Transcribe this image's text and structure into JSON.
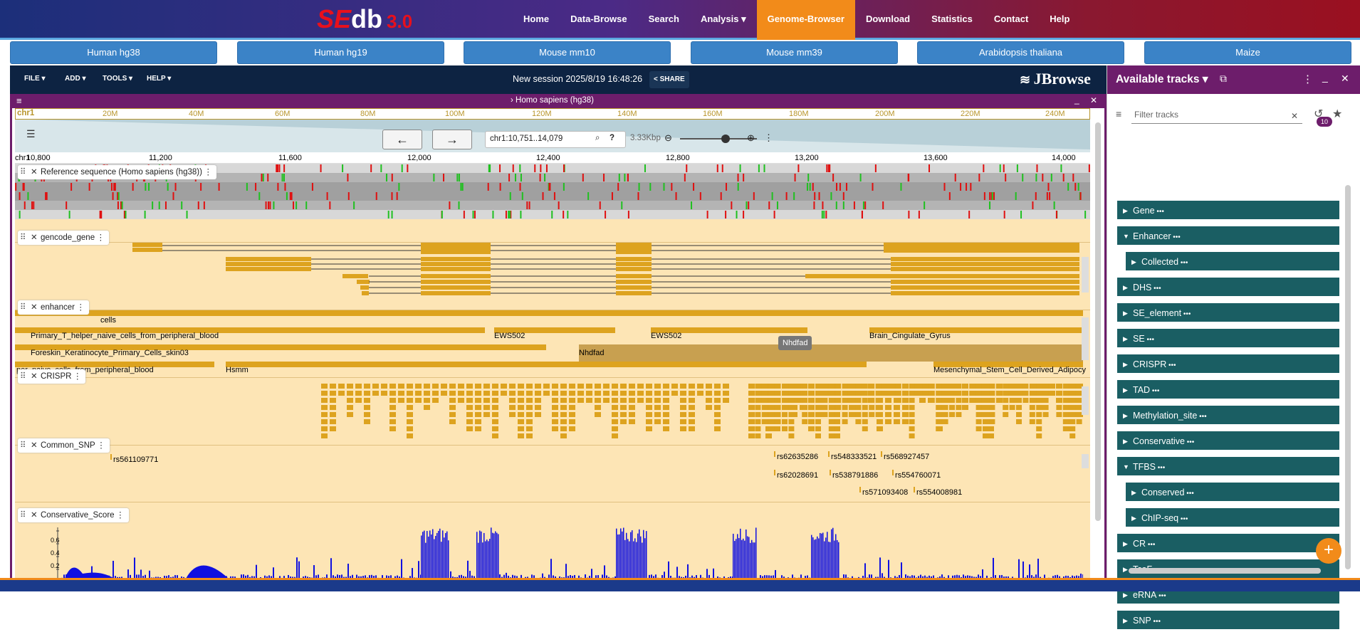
{
  "site": {
    "logo_se": "SE",
    "logo_db": "db",
    "logo_ver": "3.0",
    "menu": [
      "Home",
      "Data-Browse",
      "Search",
      "Analysis",
      "Genome-Browser",
      "Download",
      "Statistics",
      "Contact",
      "Help"
    ],
    "active_menu": "Genome-Browser",
    "genome_tabs": [
      "Human hg38",
      "Human hg19",
      "Mouse mm10",
      "Mouse mm39",
      "Arabidopsis thaliana",
      "Maize"
    ]
  },
  "jbrowse": {
    "menu": [
      "FILE",
      "ADD",
      "TOOLS",
      "HELP"
    ],
    "session_name": "New session 2025/8/19 16:48:26",
    "share_label": "SHARE",
    "logo_text": "JBrowse",
    "view_title": "Homo sapiens (hg38)",
    "overview_chr": "chr1",
    "overview_ticks": [
      "20M",
      "40M",
      "60M",
      "80M",
      "100M",
      "120M",
      "140M",
      "160M",
      "180M",
      "200M",
      "220M",
      "240M"
    ],
    "location": "chr1:10,751..14,079",
    "span": "3.33Kbp",
    "scale_chr": "chr1",
    "scale_ticks": [
      "10,800",
      "11,200",
      "11,600",
      "12,000",
      "12,400",
      "12,800",
      "13,200",
      "13,600",
      "14,000"
    ],
    "tracks": {
      "reference": "Reference sequence (Homo sapiens (hg38))",
      "gencode": "gencode_gene",
      "enhancer": "enhancer",
      "crispr": "CRISPR",
      "snp": "Common_SNP",
      "conservative": "Conservative_Score"
    },
    "enhancer_labels": [
      "cells",
      "Primary_T_helper_naive_cells_from_peripheral_blood",
      "EWS502",
      "EWS502",
      "Brain_Cingulate_Gyrus",
      "Foreskin_Keratinocyte_Primary_Cells_skin03",
      "Nhdfad",
      "per_naive_cells_from_peripheral_blood",
      "Hsmm",
      "Mesenchymal_Stem_Cell_Derived_Adipocy"
    ],
    "tooltip": "Nhdfad",
    "snp_labels": [
      "rs561109771",
      "rs62635286",
      "rs548333521",
      "rs568927457",
      "rs62028691",
      "rs538791886",
      "rs554760071",
      "rs571093408",
      "rs554008981"
    ],
    "cons_ticks": [
      "0.6",
      "0.4",
      "0.2"
    ]
  },
  "sidebar": {
    "title": "Available tracks",
    "filter_placeholder": "Filter tracks",
    "badge": "10",
    "categories": [
      {
        "label": "Gene",
        "open": false,
        "sub": false
      },
      {
        "label": "Enhancer",
        "open": true,
        "sub": false
      },
      {
        "label": "Collected",
        "open": false,
        "sub": true
      },
      {
        "label": "DHS",
        "open": false,
        "sub": false
      },
      {
        "label": "SE_element",
        "open": false,
        "sub": false
      },
      {
        "label": "SE",
        "open": false,
        "sub": false
      },
      {
        "label": "CRISPR",
        "open": false,
        "sub": false
      },
      {
        "label": "TAD",
        "open": false,
        "sub": false
      },
      {
        "label": "Methylation_site",
        "open": false,
        "sub": false
      },
      {
        "label": "Conservative",
        "open": false,
        "sub": false
      },
      {
        "label": "TFBS",
        "open": true,
        "sub": false
      },
      {
        "label": "Conserved",
        "open": false,
        "sub": true
      },
      {
        "label": "ChIP-seq",
        "open": false,
        "sub": true
      },
      {
        "label": "CR",
        "open": false,
        "sub": false
      },
      {
        "label": "TcoF",
        "open": false,
        "sub": false
      },
      {
        "label": "eRNA",
        "open": false,
        "sub": false
      },
      {
        "label": "SNP",
        "open": false,
        "sub": false
      }
    ]
  },
  "colors": {
    "accent": "#f28b1a",
    "purple": "#6d1d6b",
    "track_bg": "#fde5b5",
    "gene": "#dda31f",
    "teal": "#1a5e63"
  }
}
